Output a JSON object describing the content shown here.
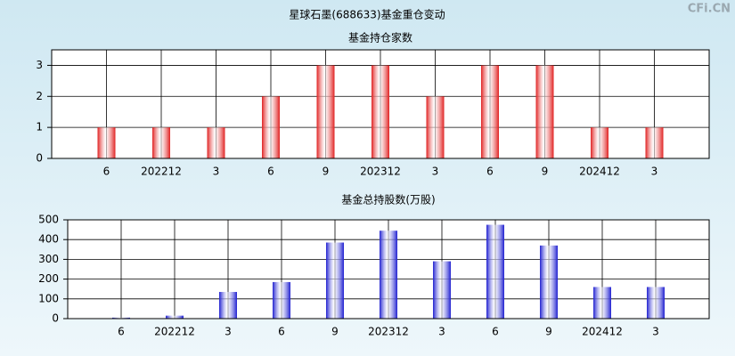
{
  "title": "星球石墨(688633)基金重仓变动",
  "watermark": "CFi.CN",
  "chart_data": [
    {
      "type": "bar",
      "title": "基金持仓家数",
      "categories": [
        "6",
        "202212",
        "3",
        "6",
        "9",
        "202312",
        "3",
        "6",
        "9",
        "202412",
        "3"
      ],
      "values": [
        1,
        1,
        1,
        2,
        3,
        3,
        2,
        3,
        3,
        1,
        1
      ],
      "color": "#e02020",
      "ylim": [
        0,
        3.5
      ],
      "yticks": [
        0,
        1,
        2,
        3
      ],
      "grid": true
    },
    {
      "type": "bar",
      "title": "基金总持股数(万股)",
      "categories": [
        "6",
        "202212",
        "3",
        "6",
        "9",
        "202312",
        "3",
        "6",
        "9",
        "202412",
        "3"
      ],
      "values": [
        5,
        15,
        135,
        185,
        385,
        445,
        290,
        475,
        370,
        160,
        160
      ],
      "color": "#2020d0",
      "ylim": [
        0,
        500
      ],
      "yticks": [
        0,
        100,
        200,
        300,
        400,
        500
      ],
      "grid": true
    }
  ]
}
